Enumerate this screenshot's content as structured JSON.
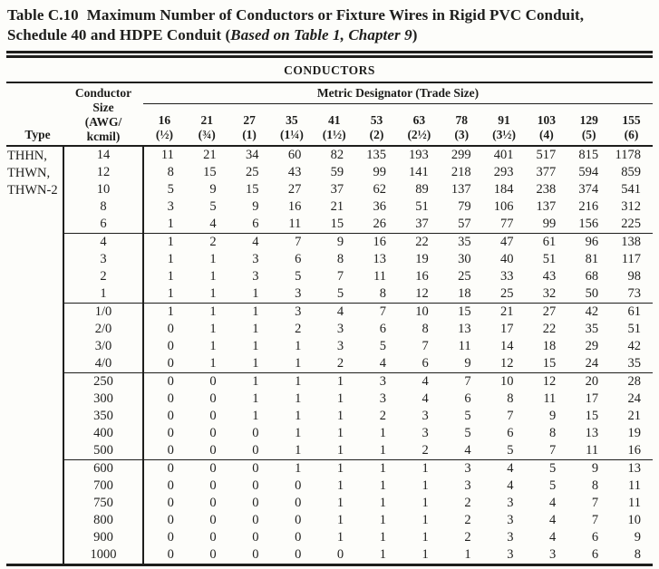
{
  "title": {
    "label": "Table C.10",
    "line1_rest": "Maximum Number of Conductors or Fixture Wires in Rigid PVC Conduit,",
    "line2_bold": "Schedule 40 and HDPE Conduit (",
    "line2_italic": "Based on Table 1, Chapter 9",
    "line2_close": ")"
  },
  "table": {
    "banner": "CONDUCTORS",
    "type_header": "Type",
    "size_header_lines": [
      "Conductor",
      "Size",
      "(AWG/",
      "kcmil)"
    ],
    "metric_header": "Metric Designator (Trade Size)",
    "columns": [
      {
        "metric": "16",
        "trade": "(½)"
      },
      {
        "metric": "21",
        "trade": "(¾)"
      },
      {
        "metric": "27",
        "trade": "(1)"
      },
      {
        "metric": "35",
        "trade": "(1¼)"
      },
      {
        "metric": "41",
        "trade": "(1½)"
      },
      {
        "metric": "53",
        "trade": "(2)"
      },
      {
        "metric": "63",
        "trade": "(2½)"
      },
      {
        "metric": "78",
        "trade": "(3)"
      },
      {
        "metric": "91",
        "trade": "(3½)"
      },
      {
        "metric": "103",
        "trade": "(4)"
      },
      {
        "metric": "129",
        "trade": "(5)"
      },
      {
        "metric": "155",
        "trade": "(6)"
      }
    ],
    "type_label_lines": [
      "THHN,",
      "THWN,",
      "THWN-2"
    ],
    "groups": [
      {
        "rows": [
          {
            "size": "14",
            "values": [
              11,
              21,
              34,
              60,
              82,
              135,
              193,
              299,
              401,
              517,
              815,
              1178
            ]
          },
          {
            "size": "12",
            "values": [
              8,
              15,
              25,
              43,
              59,
              99,
              141,
              218,
              293,
              377,
              594,
              859
            ]
          },
          {
            "size": "10",
            "values": [
              5,
              9,
              15,
              27,
              37,
              62,
              89,
              137,
              184,
              238,
              374,
              541
            ]
          },
          {
            "size": "8",
            "values": [
              3,
              5,
              9,
              16,
              21,
              36,
              51,
              79,
              106,
              137,
              216,
              312
            ]
          },
          {
            "size": "6",
            "values": [
              1,
              4,
              6,
              11,
              15,
              26,
              37,
              57,
              77,
              99,
              156,
              225
            ]
          }
        ]
      },
      {
        "rows": [
          {
            "size": "4",
            "values": [
              1,
              2,
              4,
              7,
              9,
              16,
              22,
              35,
              47,
              61,
              96,
              138
            ]
          },
          {
            "size": "3",
            "values": [
              1,
              1,
              3,
              6,
              8,
              13,
              19,
              30,
              40,
              51,
              81,
              117
            ]
          },
          {
            "size": "2",
            "values": [
              1,
              1,
              3,
              5,
              7,
              11,
              16,
              25,
              33,
              43,
              68,
              98
            ]
          },
          {
            "size": "1",
            "values": [
              1,
              1,
              1,
              3,
              5,
              8,
              12,
              18,
              25,
              32,
              50,
              73
            ]
          }
        ]
      },
      {
        "rows": [
          {
            "size": "1/0",
            "values": [
              1,
              1,
              1,
              3,
              4,
              7,
              10,
              15,
              21,
              27,
              42,
              61
            ]
          },
          {
            "size": "2/0",
            "values": [
              0,
              1,
              1,
              2,
              3,
              6,
              8,
              13,
              17,
              22,
              35,
              51
            ]
          },
          {
            "size": "3/0",
            "values": [
              0,
              1,
              1,
              1,
              3,
              5,
              7,
              11,
              14,
              18,
              29,
              42
            ]
          },
          {
            "size": "4/0",
            "values": [
              0,
              1,
              1,
              1,
              2,
              4,
              6,
              9,
              12,
              15,
              24,
              35
            ]
          }
        ]
      },
      {
        "rows": [
          {
            "size": "250",
            "values": [
              0,
              0,
              1,
              1,
              1,
              3,
              4,
              7,
              10,
              12,
              20,
              28
            ]
          },
          {
            "size": "300",
            "values": [
              0,
              0,
              1,
              1,
              1,
              3,
              4,
              6,
              8,
              11,
              17,
              24
            ]
          },
          {
            "size": "350",
            "values": [
              0,
              0,
              1,
              1,
              1,
              2,
              3,
              5,
              7,
              9,
              15,
              21
            ]
          },
          {
            "size": "400",
            "values": [
              0,
              0,
              0,
              1,
              1,
              1,
              3,
              5,
              6,
              8,
              13,
              19
            ]
          },
          {
            "size": "500",
            "values": [
              0,
              0,
              0,
              1,
              1,
              1,
              2,
              4,
              5,
              7,
              11,
              16
            ]
          }
        ]
      },
      {
        "rows": [
          {
            "size": "600",
            "values": [
              0,
              0,
              0,
              1,
              1,
              1,
              1,
              3,
              4,
              5,
              9,
              13
            ]
          },
          {
            "size": "700",
            "values": [
              0,
              0,
              0,
              0,
              1,
              1,
              1,
              3,
              4,
              5,
              8,
              11
            ]
          },
          {
            "size": "750",
            "values": [
              0,
              0,
              0,
              0,
              1,
              1,
              1,
              2,
              3,
              4,
              7,
              11
            ]
          },
          {
            "size": "800",
            "values": [
              0,
              0,
              0,
              0,
              1,
              1,
              1,
              2,
              3,
              4,
              7,
              10
            ]
          },
          {
            "size": "900",
            "values": [
              0,
              0,
              0,
              0,
              1,
              1,
              1,
              2,
              3,
              4,
              6,
              9
            ]
          },
          {
            "size": "1000",
            "values": [
              0,
              0,
              0,
              0,
              0,
              1,
              1,
              1,
              3,
              3,
              6,
              8
            ]
          }
        ]
      }
    ]
  },
  "colors": {
    "ink": "#1e1e1c",
    "paper": "#fdfdfa"
  }
}
